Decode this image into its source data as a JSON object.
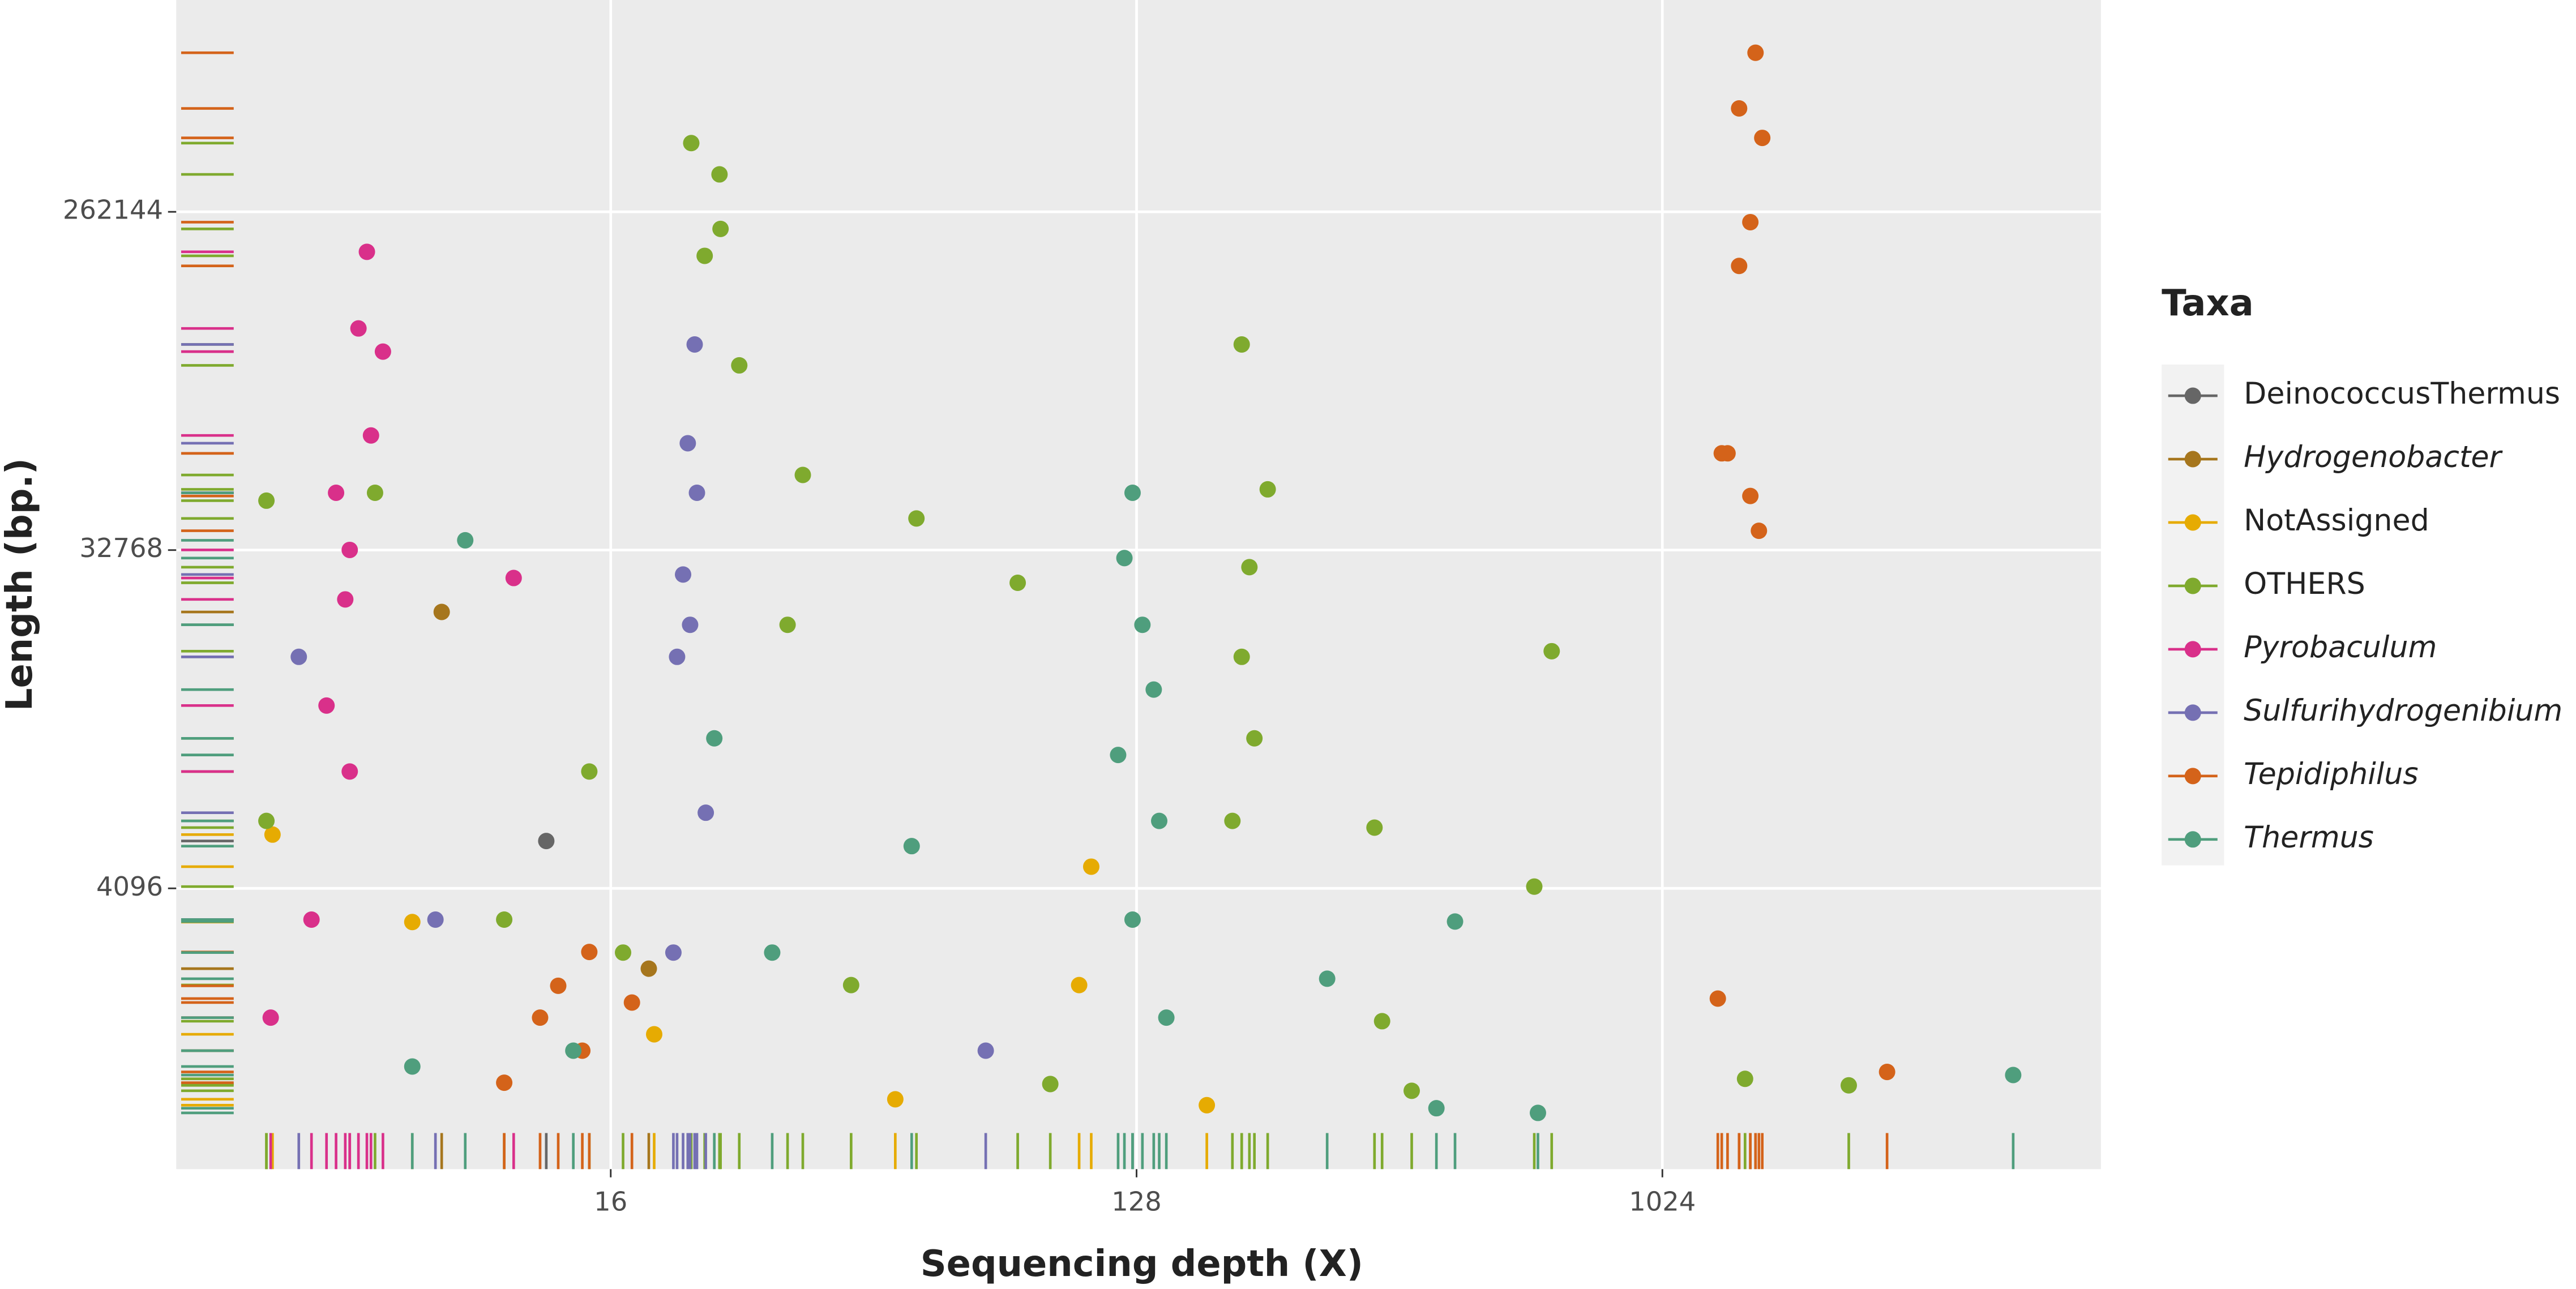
{
  "chart_data": {
    "type": "scatter",
    "x_label": "Sequencing depth (X)",
    "y_label": "Length (bp.)",
    "legend_title": "Taxa",
    "log_x": true,
    "log_y": true,
    "grid": true,
    "rug": true,
    "legend": "right",
    "xlim": [
      2.87,
      5800
    ],
    "xticks": [
      16,
      128,
      1024
    ],
    "ylim": [
      729,
      964000
    ],
    "yticks": [
      4096,
      32768,
      262144
    ],
    "series": [
      {
        "name": "DeinococcusThermus",
        "color": "#666666",
        "italic": false,
        "x": [
          12.4
        ],
        "values": [
          5480
        ]
      },
      {
        "name": "Hydrogenobacter",
        "color": "#A6761D",
        "italic": true,
        "x": [
          8.2,
          18.6
        ],
        "values": [
          22400,
          2500
        ]
      },
      {
        "name": "NotAssigned",
        "color": "#E6AB02",
        "italic": false,
        "x": [
          4.2,
          7.3,
          19.0,
          107,
          169,
          102,
          49.3
        ],
        "values": [
          5700,
          3330,
          1670,
          4680,
          1080,
          2260,
          1120
        ]
      },
      {
        "name": "OTHERS",
        "color": "#7FAA2E",
        "italic": false,
        "x": [
          22,
          24.6,
          24.7,
          23.2,
          26.6,
          34.2,
          4.1,
          194,
          215,
          200,
          194,
          204,
          187,
          661,
          617,
          53.6,
          80,
          328,
          338,
          2140,
          1420,
          6.3,
          4.1,
          10.5,
          16.8,
          41.4,
          91,
          380,
          32.2,
          14.7
        ],
        "values": [
          400000,
          330000,
          236000,
          200000,
          102000,
          52000,
          44400,
          116000,
          47600,
          29500,
          17000,
          10300,
          6200,
          17600,
          4140,
          39800,
          26800,
          5950,
          1810,
          1220,
          1270,
          46600,
          6200,
          3380,
          2760,
          2260,
          1230,
          1180,
          20700,
          8400
        ]
      },
      {
        "name": "Pyrobaculum",
        "color": "#D9308A",
        "italic": true,
        "x": [
          6.1,
          5.9,
          6.5,
          6.2,
          5.4,
          5.7,
          5.6,
          5.2,
          5.7,
          10.9,
          4.17,
          4.9
        ],
        "values": [
          205000,
          128000,
          111000,
          66300,
          46600,
          32800,
          24200,
          12600,
          8400,
          27600,
          1850,
          3380
        ]
      },
      {
        "name": "Sulfurihydrogenibium",
        "color": "#7570B3",
        "italic": true,
        "x": [
          22.3,
          21.7,
          22.5,
          21.3,
          21.9,
          20.8,
          23.3,
          20.5,
          4.66,
          70.5,
          8
        ],
        "values": [
          116000,
          63200,
          46600,
          28200,
          20700,
          17000,
          6520,
          2760,
          17000,
          1510,
          3380
        ]
      },
      {
        "name": "Tepidiphilus",
        "color": "#D4631A",
        "italic": true,
        "x": [
          1480,
          1387,
          1520,
          1450,
          1387,
          1295,
          1325,
          1450,
          1500,
          1275,
          2490,
          13,
          12.1,
          14.3,
          14.7,
          17.4,
          10.5
        ],
        "values": [
          697000,
          495000,
          413000,
          246000,
          188000,
          59400,
          59400,
          45700,
          36900,
          2080,
          1325,
          2250,
          1850,
          1510,
          2770,
          2030,
          1240
        ]
      },
      {
        "name": "Thermus",
        "color": "#4F9E7D",
        "italic": true,
        "x": [
          126,
          122,
          131,
          137,
          119,
          140,
          126,
          144,
          451,
          4100,
          626,
          272,
          9.0,
          52.6,
          30.3,
          13.8,
          7.3,
          419,
          24.1
        ],
        "values": [
          46600,
          31200,
          20700,
          13900,
          9300,
          6200,
          3380,
          1850,
          3340,
          1300,
          1030,
          2350,
          34800,
          5310,
          2760,
          1510,
          1370,
          1060,
          10300
        ]
      }
    ]
  }
}
